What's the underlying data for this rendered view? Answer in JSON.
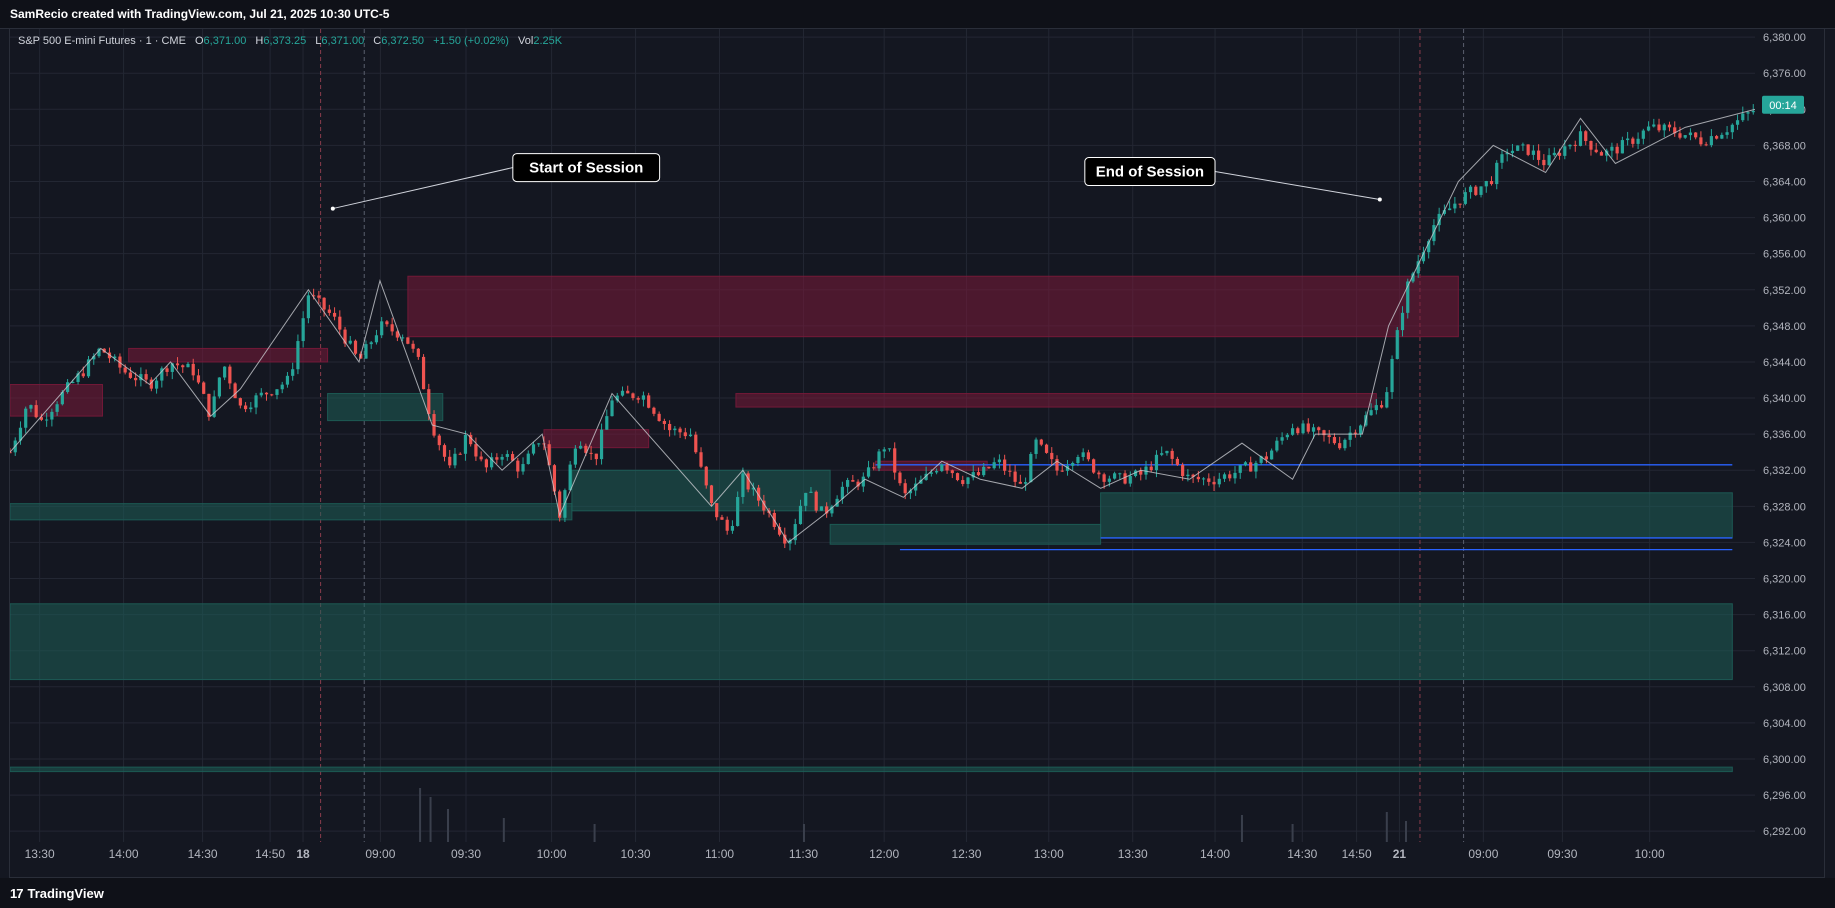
{
  "header": {
    "caption": "SamRecio created with TradingView.com, Jul 21, 2025 10:30 UTC-5"
  },
  "legend": {
    "symbol": "S&P 500 E-mini Futures · 1 · CME",
    "o_label": "O",
    "o_value": "6,371.00",
    "h_label": "H",
    "h_value": "6,373.25",
    "l_label": "L",
    "l_value": "6,371.00",
    "c_label": "C",
    "c_value": "6,372.50",
    "change": "+1.50 (+0.02%)",
    "vol_label": "Vol",
    "vol_value": "2.25K"
  },
  "footer": {
    "brand": "TradingView",
    "logo_glyph": "17"
  },
  "colors": {
    "background": "#141721",
    "grid": "#232733",
    "up": "#26a69a",
    "down": "#ef5350",
    "supply_zone": "#7a1a3a",
    "demand_zone": "#1d5e58",
    "level_line": "#2962ff",
    "price_tag": "#26a69a"
  },
  "chart_data": {
    "type": "candlestick",
    "title": "S&P 500 E-mini Futures",
    "price_axis": {
      "ticks": [
        6380,
        6376,
        6372,
        6368,
        6364,
        6360,
        6356,
        6352,
        6348,
        6344,
        6340,
        6336,
        6332,
        6328,
        6324,
        6320,
        6316,
        6312,
        6308,
        6304,
        6300,
        6296,
        6292
      ],
      "tick_labels": [
        "6,380.00",
        "6,376.00",
        "6,372.00",
        "6,368.00",
        "6,364.00",
        "6,360.00",
        "6,356.00",
        "6,352.00",
        "6,348.00",
        "6,344.00",
        "6,340.00",
        "6,336.00",
        "6,332.00",
        "6,328.00",
        "6,324.00",
        "6,320.00",
        "6,316.00",
        "6,312.00",
        "6,308.00",
        "6,304.00",
        "6,300.00",
        "6,296.00",
        "6,292.00"
      ],
      "range": [
        6290.8,
        6380.9
      ]
    },
    "time_axis": {
      "labels": [
        "13:30",
        "14:00",
        "14:30",
        "14:50",
        "18",
        "09:00",
        "09:30",
        "10:00",
        "10:30",
        "11:00",
        "11:30",
        "12:00",
        "12:30",
        "13:00",
        "13:30",
        "14:00",
        "14:30",
        "14:50",
        "21",
        "09:00",
        "09:30",
        "10:00"
      ],
      "bold": [
        "18",
        "21"
      ]
    },
    "last_price": {
      "value": 6372.5,
      "countdown": "00:14"
    },
    "price_path": [
      [
        0,
        6334
      ],
      [
        10,
        6339.5
      ],
      [
        18,
        6337.5
      ],
      [
        28,
        6340
      ],
      [
        42,
        6343
      ],
      [
        52,
        6345.5
      ],
      [
        65,
        6343
      ],
      [
        80,
        6341.5
      ],
      [
        92,
        6344
      ],
      [
        105,
        6343
      ],
      [
        115,
        6338
      ],
      [
        122,
        6344
      ],
      [
        132,
        6339
      ],
      [
        146,
        6340.5
      ],
      [
        160,
        6342
      ],
      [
        171,
        6351.5
      ],
      [
        185,
        6349
      ],
      [
        200,
        6344
      ],
      [
        212,
        6348
      ],
      [
        226,
        6347
      ],
      [
        234,
        6344
      ],
      [
        242,
        6337
      ],
      [
        252,
        6332
      ],
      [
        262,
        6336
      ],
      [
        272,
        6332
      ],
      [
        282,
        6334
      ],
      [
        293,
        6332
      ],
      [
        305,
        6336
      ],
      [
        315,
        6327
      ],
      [
        325,
        6336
      ],
      [
        335,
        6333
      ],
      [
        345,
        6340
      ],
      [
        362,
        6340.5
      ],
      [
        378,
        6336.5
      ],
      [
        390,
        6336
      ],
      [
        402,
        6328
      ],
      [
        412,
        6325
      ],
      [
        420,
        6331
      ],
      [
        432,
        6328
      ],
      [
        446,
        6324
      ],
      [
        456,
        6330
      ],
      [
        466,
        6327
      ],
      [
        476,
        6330
      ],
      [
        490,
        6331
      ],
      [
        502,
        6335
      ],
      [
        512,
        6329
      ],
      [
        524,
        6331
      ],
      [
        534,
        6333
      ],
      [
        545,
        6331
      ],
      [
        556,
        6331.5
      ],
      [
        566,
        6333
      ],
      [
        580,
        6330
      ],
      [
        588,
        6335
      ],
      [
        600,
        6332
      ],
      [
        612,
        6334
      ],
      [
        625,
        6331.5
      ],
      [
        636,
        6331
      ],
      [
        648,
        6331.5
      ],
      [
        662,
        6334
      ],
      [
        676,
        6331
      ],
      [
        690,
        6331
      ],
      [
        706,
        6332
      ],
      [
        720,
        6333.5
      ],
      [
        735,
        6337
      ],
      [
        748,
        6336
      ],
      [
        762,
        6335
      ],
      [
        775,
        6337.5
      ],
      [
        788,
        6340
      ],
      [
        800,
        6352
      ],
      [
        815,
        6359
      ],
      [
        830,
        6362
      ],
      [
        848,
        6364
      ],
      [
        858,
        6367.5
      ],
      [
        870,
        6367.5
      ],
      [
        880,
        6366
      ],
      [
        892,
        6368
      ],
      [
        900,
        6369
      ],
      [
        913,
        6367
      ],
      [
        925,
        6368
      ],
      [
        940,
        6370
      ],
      [
        955,
        6369.5
      ],
      [
        970,
        6368.5
      ],
      [
        985,
        6370
      ],
      [
        1000,
        6372
      ]
    ],
    "volume_spikes": [
      [
        235,
        0.9
      ],
      [
        241,
        0.75
      ],
      [
        251,
        0.55
      ],
      [
        283,
        0.4
      ],
      [
        335,
        0.3
      ],
      [
        455,
        0.3
      ],
      [
        706,
        0.45
      ],
      [
        735,
        0.3
      ],
      [
        789,
        0.5
      ],
      [
        800,
        0.35
      ]
    ],
    "annotations": [
      {
        "label": "Start of Session",
        "anchor_bar": 185,
        "anchor_price": 6361
      },
      {
        "label": "End of Session",
        "anchor_bar": 785,
        "anchor_price": 6362
      }
    ],
    "zones": [
      {
        "kind": "supply",
        "x_bars": [
          0,
          53
        ],
        "price": [
          6338,
          6341.5
        ]
      },
      {
        "kind": "supply",
        "x_bars": [
          68,
          182
        ],
        "price": [
          6344,
          6345.5
        ]
      },
      {
        "kind": "supply",
        "x_bars": [
          228,
          830
        ],
        "price": [
          6346.8,
          6353.5
        ]
      },
      {
        "kind": "supply",
        "x_bars": [
          416,
          783
        ],
        "price": [
          6339,
          6340.5
        ]
      },
      {
        "kind": "supply",
        "x_bars": [
          306,
          366
        ],
        "price": [
          6334.5,
          6336.5
        ]
      },
      {
        "kind": "supply",
        "x_bars": [
          496,
          560
        ],
        "price": [
          6332,
          6333
        ]
      },
      {
        "kind": "demand",
        "x_bars": [
          182,
          248
        ],
        "price": [
          6337.5,
          6340.5
        ]
      },
      {
        "kind": "demand",
        "x_bars": [
          0,
          322
        ],
        "price": [
          6326.5,
          6328.3
        ]
      },
      {
        "kind": "demand",
        "x_bars": [
          322,
          470
        ],
        "price": [
          6327.5,
          6332
        ]
      },
      {
        "kind": "demand",
        "x_bars": [
          470,
          625
        ],
        "price": [
          6323.8,
          6326
        ]
      },
      {
        "kind": "demand",
        "x_bars": [
          625,
          987
        ],
        "price": [
          6324.5,
          6329.5
        ]
      },
      {
        "kind": "demand",
        "x_bars": [
          0,
          987
        ],
        "price": [
          6308.8,
          6317.2
        ]
      },
      {
        "kind": "demand",
        "x_bars": [
          0,
          987
        ],
        "price": [
          6298.6,
          6299.1
        ]
      }
    ],
    "levels": [
      {
        "x_bars": [
          496,
          987
        ],
        "price": 6332.6
      },
      {
        "x_bars": [
          625,
          987
        ],
        "price": 6324.5
      },
      {
        "x_bars": [
          510,
          987
        ],
        "price": 6323.2
      }
    ]
  }
}
